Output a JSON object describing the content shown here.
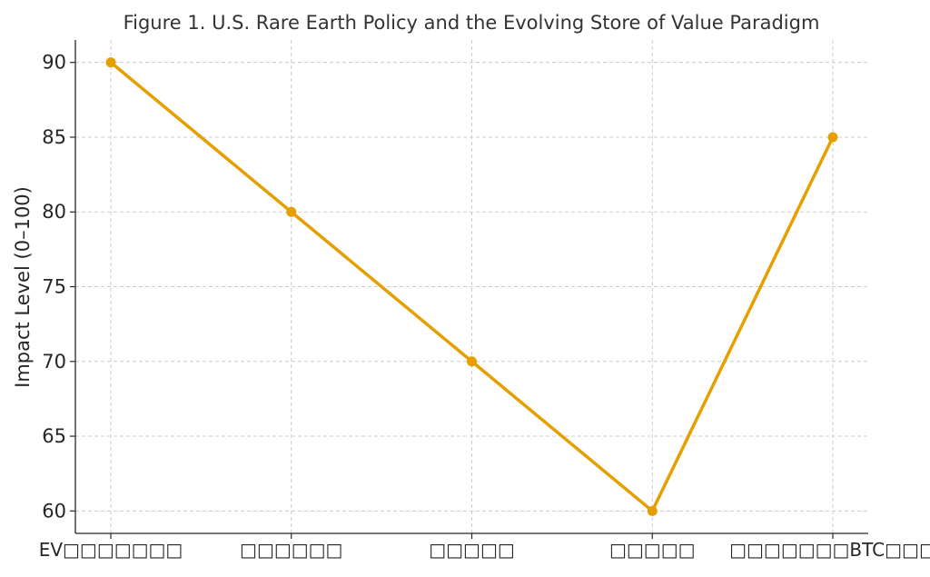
{
  "chart_data": {
    "type": "line",
    "title": "Figure 1. U.S. Rare Earth Policy and the Evolving Store of Value Paradigm",
    "xlabel": "",
    "ylabel": "Impact Level (0–100)",
    "categories": [
      "EV□□□□□□□",
      "□□□□□□",
      "□□□□□",
      "□□□□□",
      "□□□□□□□BTC□□□"
    ],
    "series": [
      {
        "name": "Impact",
        "values": [
          90,
          80,
          70,
          60,
          85
        ],
        "color": "#E69F00"
      }
    ],
    "ylim": [
      58.5,
      91.5
    ],
    "yticks": [
      60,
      65,
      70,
      75,
      80,
      85,
      90
    ],
    "grid": true,
    "legend": "none"
  }
}
